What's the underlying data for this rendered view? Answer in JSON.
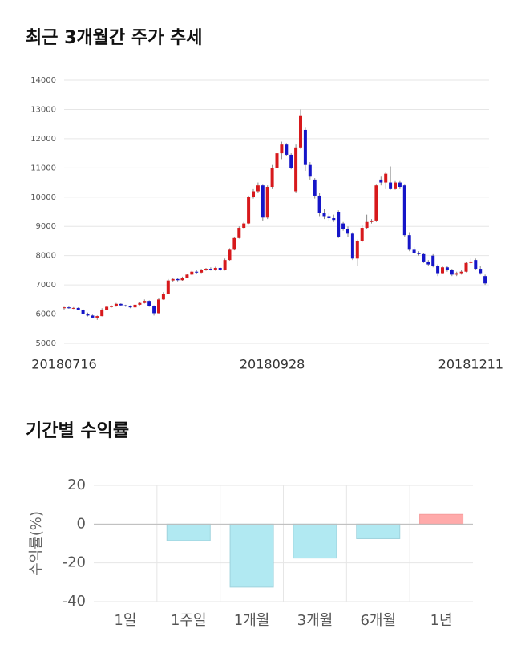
{
  "chart_data": [
    {
      "type": "candlestick",
      "title": "최근 3개월간 주가 추세",
      "categories": [
        "20180716",
        null,
        null,
        null,
        null,
        null,
        null,
        null,
        null,
        null,
        null,
        null,
        null,
        null,
        null,
        null,
        null,
        null,
        null,
        null,
        null,
        null,
        null,
        null,
        null,
        null,
        null,
        null,
        null,
        null,
        null,
        null,
        null,
        null,
        null,
        null,
        null,
        null,
        null,
        null,
        null,
        null,
        null,
        null,
        "20180928",
        null,
        null,
        null,
        null,
        null,
        null,
        null,
        null,
        null,
        null,
        null,
        null,
        null,
        null,
        null,
        null,
        null,
        null,
        null,
        null,
        null,
        null,
        null,
        null,
        null,
        null,
        null,
        null,
        null,
        null,
        null,
        null,
        null,
        null,
        null,
        null,
        null,
        null,
        null,
        null,
        null,
        "20181211",
        null,
        null,
        null
      ],
      "open": [
        6200,
        6230,
        6200,
        6210,
        6150,
        6000,
        5950,
        5880,
        5930,
        6150,
        6250,
        6270,
        6350,
        6300,
        6280,
        6230,
        6320,
        6380,
        6450,
        6280,
        6030,
        6500,
        6700,
        7150,
        7200,
        7160,
        7250,
        7350,
        7450,
        7420,
        7520,
        7550,
        7510,
        7580,
        7500,
        7850,
        8200,
        8600,
        8950,
        9100,
        10000,
        10200,
        10400,
        9300,
        10350,
        11000,
        11500,
        11800,
        11450,
        10200,
        11700,
        12300,
        11100,
        10600,
        10050,
        9450,
        9350,
        9280,
        9500,
        9100,
        8900,
        8750,
        7900,
        8500,
        8950,
        9150,
        9200,
        10600,
        10500,
        10500,
        10300,
        10500,
        10400,
        8700,
        8200,
        8100,
        8050,
        7800,
        8000,
        7650,
        7400,
        7600,
        7500,
        7350,
        7400,
        7450,
        7750,
        7850,
        7550,
        7300
      ],
      "high": [
        6250,
        6260,
        6240,
        6230,
        6170,
        6050,
        5980,
        5950,
        6200,
        6280,
        6300,
        6380,
        6370,
        6320,
        6300,
        6350,
        6400,
        6500,
        6470,
        6300,
        6550,
        6750,
        7200,
        7250,
        7230,
        7280,
        7380,
        7480,
        7500,
        7550,
        7580,
        7600,
        7620,
        7600,
        7900,
        8250,
        8650,
        9000,
        9150,
        10050,
        10300,
        10500,
        10450,
        10400,
        11100,
        11600,
        11900,
        11850,
        11500,
        11800,
        13000,
        12400,
        11200,
        10650,
        10150,
        9600,
        9450,
        9400,
        9550,
        9150,
        9000,
        8800,
        8550,
        9050,
        9400,
        9250,
        10450,
        10700,
        10850,
        11050,
        10550,
        10550,
        10450,
        8800,
        8300,
        8150,
        8100,
        7850,
        8050,
        7700,
        7650,
        7650,
        7550,
        7450,
        7500,
        7800,
        7900,
        7900,
        7650,
        7350
      ],
      "low": [
        6150,
        6180,
        6170,
        6130,
        5980,
        5920,
        5850,
        5800,
        5920,
        6130,
        6220,
        6250,
        6280,
        6250,
        6200,
        6220,
        6300,
        6360,
        6250,
        5950,
        6020,
        6480,
        6680,
        7100,
        7120,
        7140,
        7230,
        7330,
        7380,
        7400,
        7480,
        7490,
        7480,
        7470,
        7490,
        7830,
        8180,
        8580,
        8930,
        9080,
        9950,
        10150,
        9200,
        9250,
        10300,
        10900,
        11300,
        11400,
        10950,
        10150,
        11650,
        10900,
        10600,
        9950,
        9350,
        9250,
        9200,
        9150,
        8600,
        8850,
        8650,
        7850,
        7650,
        8450,
        8900,
        9100,
        9150,
        10400,
        10300,
        10250,
        10250,
        10300,
        8650,
        8150,
        8050,
        8000,
        7750,
        7650,
        7600,
        7300,
        7380,
        7450,
        7300,
        7300,
        7350,
        7430,
        7700,
        7500,
        7350,
        7000
      ],
      "close": [
        6230,
        6200,
        6210,
        6150,
        6000,
        5950,
        5880,
        5930,
        6150,
        6250,
        6270,
        6350,
        6300,
        6280,
        6230,
        6320,
        6380,
        6450,
        6280,
        6030,
        6500,
        6700,
        7150,
        7200,
        7160,
        7250,
        7350,
        7450,
        7420,
        7520,
        7550,
        7510,
        7580,
        7500,
        7850,
        8200,
        8600,
        8950,
        9100,
        10000,
        10200,
        10400,
        9300,
        10350,
        11000,
        11500,
        11800,
        11450,
        11000,
        11700,
        12800,
        11100,
        10700,
        10050,
        9450,
        9350,
        9280,
        9220,
        8650,
        8900,
        8750,
        7900,
        8500,
        8950,
        9150,
        9200,
        10400,
        10500,
        10800,
        10300,
        10500,
        10350,
        8700,
        8200,
        8100,
        8050,
        7800,
        7700,
        7650,
        7400,
        7600,
        7500,
        7350,
        7400,
        7450,
        7750,
        7800,
        7550,
        7400,
        7050
      ],
      "up_color": "#d7191c",
      "down_color": "#1515c8",
      "ylim": [
        5000,
        14000
      ],
      "yticks": [
        5000,
        6000,
        7000,
        8000,
        9000,
        10000,
        11000,
        12000,
        13000,
        14000
      ],
      "grid": true
    },
    {
      "type": "bar",
      "title": "기간별 수익률",
      "y_label": "수익률(%)",
      "categories": [
        "1일",
        "1주일",
        "1개월",
        "3개월",
        "6개월",
        "1년"
      ],
      "values": [
        0,
        -8.5,
        -32.5,
        -17.5,
        -7.5,
        5
      ],
      "positive_color": "#ffaaaa",
      "negative_color": "#b1e9f2",
      "ylim": [
        -40,
        20
      ],
      "yticks": [
        -40,
        -20,
        0,
        20
      ],
      "grid": true
    }
  ]
}
